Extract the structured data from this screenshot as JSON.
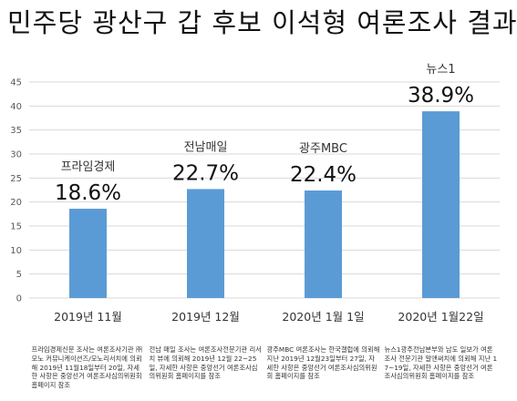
{
  "title": "민주당 광산구 갑 후보 이석형 여론조사 결과",
  "chart_data": {
    "type": "bar",
    "title": "민주당 광산구 갑 후보 이석형 여론조사 결과",
    "ylim": [
      0,
      45
    ],
    "yticks": [
      0,
      5,
      10,
      15,
      20,
      25,
      30,
      35,
      40,
      45
    ],
    "grid": true,
    "legend": "none",
    "bar_color": "#5b9bd5",
    "categories": [
      "2019년 11월",
      "2019년 12월",
      "2020년 1월 1일",
      "2020년 1월22일"
    ],
    "publishers": [
      "프라임경제",
      "전남매일",
      "광주MBC",
      "뉴스1"
    ],
    "values": [
      18.6,
      22.7,
      22.4,
      38.9
    ],
    "data_labels": [
      "18.6%",
      "22.7%",
      "22.4%",
      "38.9%"
    ],
    "notes": [
      "프라임경제신문 조사는 여론조사기관 ㈜모노 커뮤니케이션즈/모노리서치에 의뢰해 2019년 11월18일부터 20일, 자세한 사항은 중앙선거 여론조사심의위원회 홈페이지 참조",
      "전남 매일 조사는 여론조사전문기관 리서치 뷰에 의뢰해 2019년 12월 22~25일, 자세한 사항은 중앙선거 여론조사심의위원회 홈페이지를 참조",
      "광주MBC 여론조사는 한국갤럽에 의뢰해 지난 2019년 12월23일부터 27일, 자세한 사항은 중앙선거 여론조사심의위원회 홈페이지를 참조",
      "뉴스1광주전남본부와 남도 일보가 여론조사 전문기관 알앤써치에 의뢰해 지난 17~19일, 자세한 사항은 중앙선거 여론조사심의위원회 홈페이지를 참조"
    ]
  }
}
